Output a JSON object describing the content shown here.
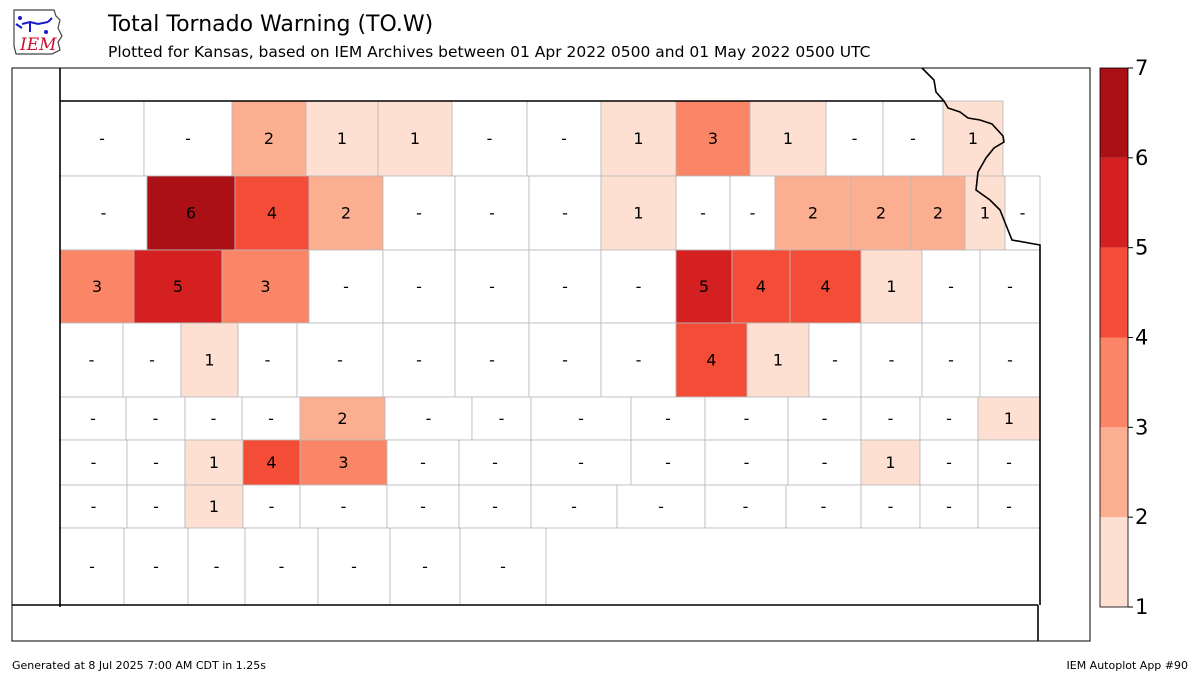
{
  "header": {
    "title": "Total Tornado Warning (TO.W)",
    "subtitle": "Plotted for Kansas, based on IEM Archives  between 01 Apr 2022 0500 and 01 May 2022 0500 UTC",
    "logo_text": "IEM"
  },
  "footer": {
    "generated": "Generated at 8 Jul 2025 7:00 AM CDT in 1.25s",
    "app": "IEM Autoplot App #90"
  },
  "legend": {
    "ticks": [
      "1",
      "2",
      "3",
      "4",
      "5",
      "6",
      "7"
    ],
    "colors": [
      "#fee0d2",
      "#fcae91",
      "#fb8567",
      "#f44d37",
      "#d42020",
      "#ab1016"
    ]
  },
  "colors": {
    "county_border": "#b8b8b8",
    "state_border": "#000000",
    "no_data": "#ffffff"
  },
  "counties": [
    {
      "v": "-"
    },
    {
      "v": "-"
    },
    {
      "v": "2"
    },
    {
      "v": "1"
    },
    {
      "v": "1"
    },
    {
      "v": "-"
    },
    {
      "v": "-"
    },
    {
      "v": "1"
    },
    {
      "v": "3"
    },
    {
      "v": "1"
    },
    {
      "v": "-"
    },
    {
      "v": "-"
    },
    {
      "v": "1"
    },
    {
      "v": "-"
    },
    {
      "v": "6"
    },
    {
      "v": "4"
    },
    {
      "v": "2"
    },
    {
      "v": "-"
    },
    {
      "v": "-"
    },
    {
      "v": "-"
    },
    {
      "v": "1"
    },
    {
      "v": "-"
    },
    {
      "v": "-"
    },
    {
      "v": "2"
    },
    {
      "v": "2"
    },
    {
      "v": "2"
    },
    {
      "v": "1"
    },
    {
      "v": "-"
    },
    {
      "v": "3"
    },
    {
      "v": "5"
    },
    {
      "v": "3"
    },
    {
      "v": "-"
    },
    {
      "v": "-"
    },
    {
      "v": "-"
    },
    {
      "v": "-"
    },
    {
      "v": "-"
    },
    {
      "v": "5"
    },
    {
      "v": "4"
    },
    {
      "v": "4"
    },
    {
      "v": "1"
    },
    {
      "v": "-"
    },
    {
      "v": "-"
    },
    {
      "v": "-"
    },
    {
      "v": "-"
    },
    {
      "v": "1"
    },
    {
      "v": "-"
    },
    {
      "v": "-"
    },
    {
      "v": "-"
    },
    {
      "v": "-"
    },
    {
      "v": "-"
    },
    {
      "v": "-"
    },
    {
      "v": "4"
    },
    {
      "v": "1"
    },
    {
      "v": "-"
    },
    {
      "v": "-"
    },
    {
      "v": "-"
    },
    {
      "v": "-"
    },
    {
      "v": "-"
    },
    {
      "v": "-"
    },
    {
      "v": "-"
    },
    {
      "v": "-"
    },
    {
      "v": "2"
    },
    {
      "v": "-"
    },
    {
      "v": "-"
    },
    {
      "v": "-"
    },
    {
      "v": "-"
    },
    {
      "v": "-"
    },
    {
      "v": "-"
    },
    {
      "v": "-"
    },
    {
      "v": "-"
    },
    {
      "v": "1"
    },
    {
      "v": "-"
    },
    {
      "v": "-"
    },
    {
      "v": "1"
    },
    {
      "v": "4"
    },
    {
      "v": "3"
    },
    {
      "v": "-"
    },
    {
      "v": "-"
    },
    {
      "v": "-"
    },
    {
      "v": "-"
    },
    {
      "v": "-"
    },
    {
      "v": "-"
    },
    {
      "v": "1"
    },
    {
      "v": "-"
    },
    {
      "v": "-"
    },
    {
      "v": "-"
    },
    {
      "v": "-"
    },
    {
      "v": "1"
    },
    {
      "v": "-"
    },
    {
      "v": "-"
    },
    {
      "v": "-"
    },
    {
      "v": "-"
    },
    {
      "v": "-"
    },
    {
      "v": "-"
    },
    {
      "v": "-"
    },
    {
      "v": "-"
    },
    {
      "v": "-"
    },
    {
      "v": "-"
    },
    {
      "v": "-"
    },
    {
      "v": "-"
    },
    {
      "v": "-"
    },
    {
      "v": "-"
    },
    {
      "v": "-"
    },
    {
      "v": "-"
    },
    {
      "v": "-"
    },
    {
      "v": "-"
    }
  ]
}
